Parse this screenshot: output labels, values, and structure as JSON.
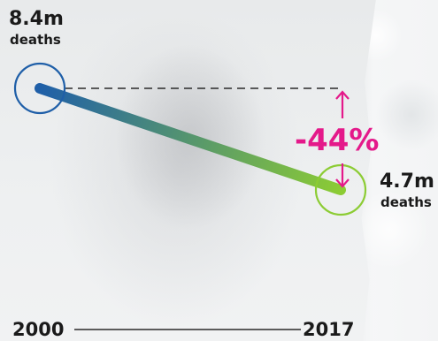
{
  "chart_data": {
    "type": "line",
    "x": [
      "2000",
      "2017"
    ],
    "values": [
      8.4,
      4.7
    ],
    "value_labels": [
      "8.4m",
      "4.7m"
    ],
    "unit_label": "deaths",
    "change_label": "-44%",
    "axis_labels": [
      "2000",
      "2017"
    ],
    "ylim": [
      4.7,
      8.4
    ]
  },
  "colors": {
    "start": "#1f5fa8",
    "end": "#8ccc34",
    "change": "#e4198a",
    "text": "#1a1a1a"
  }
}
